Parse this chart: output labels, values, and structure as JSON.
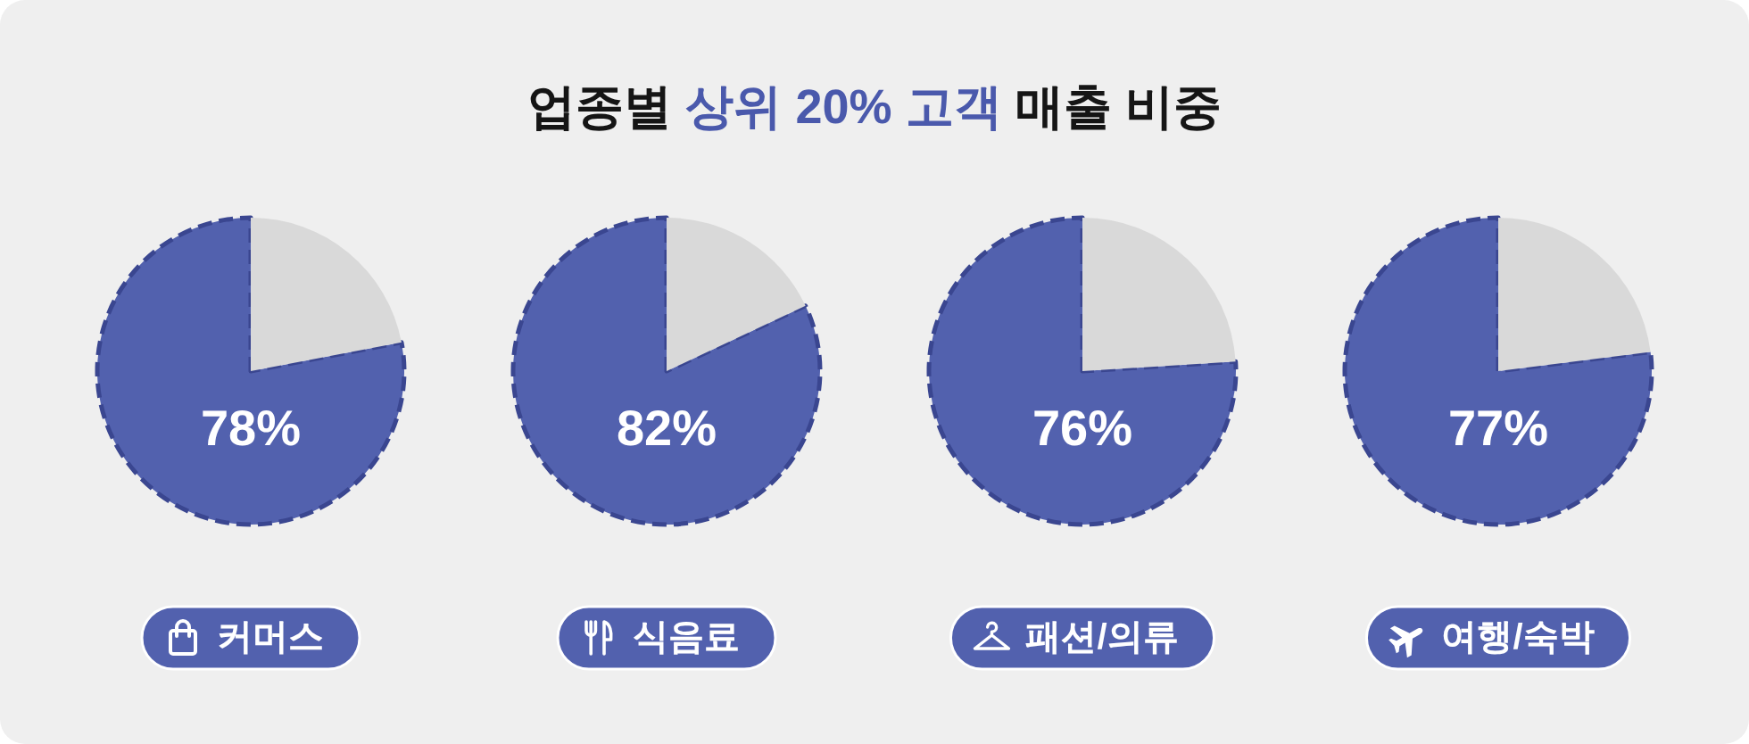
{
  "chart_data": [
    {
      "type": "other",
      "title": "업종별 상위 20% 고객 매출 비중"
    },
    {
      "type": "pie",
      "title": "커머스",
      "categories": [
        null,
        null
      ],
      "values": [
        78,
        22
      ],
      "colors": [
        "#5261ae",
        "#d9d9d9"
      ],
      "value_labels": [
        "78%",
        null
      ]
    },
    {
      "type": "pie",
      "title": "식음료",
      "categories": [
        null,
        null
      ],
      "values": [
        82,
        18
      ],
      "colors": [
        "#5261ae",
        "#d9d9d9"
      ],
      "value_labels": [
        "82%",
        null
      ]
    },
    {
      "type": "pie",
      "title": "패션/의류",
      "categories": [
        null,
        null
      ],
      "values": [
        76,
        24
      ],
      "colors": [
        "#5261ae",
        "#d9d9d9"
      ],
      "value_labels": [
        "76%",
        null
      ]
    },
    {
      "type": "pie",
      "title": "여행/숙박",
      "categories": [
        null,
        null
      ],
      "values": [
        77,
        23
      ],
      "colors": [
        "#5261ae",
        "#d9d9d9"
      ],
      "value_labels": [
        "77%",
        null
      ]
    }
  ]
}
